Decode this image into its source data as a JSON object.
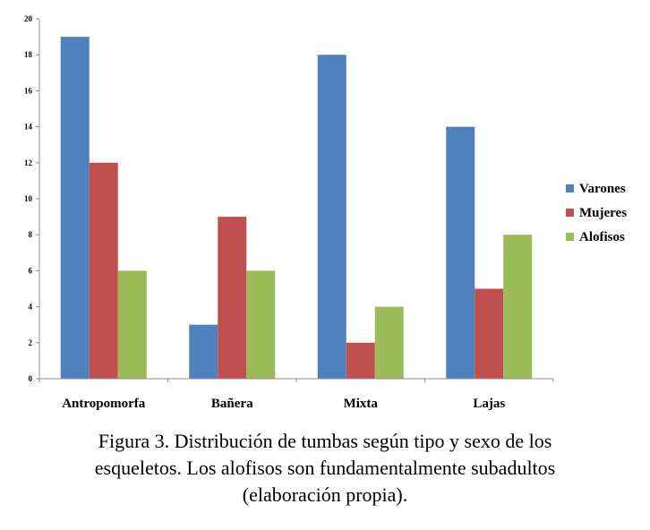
{
  "chart_data": {
    "type": "bar",
    "categories": [
      "Antropomorfa",
      "Bañera",
      "Mixta",
      "Lajas"
    ],
    "series": [
      {
        "name": "Varones",
        "color": "#4F81BD",
        "values": [
          19,
          3,
          18,
          14
        ]
      },
      {
        "name": "Mujeres",
        "color": "#C0504D",
        "values": [
          12,
          9,
          2,
          5
        ]
      },
      {
        "name": "Alofisos",
        "color": "#9BBB59",
        "values": [
          6,
          6,
          4,
          8
        ]
      }
    ],
    "y_ticks": [
      "0",
      "2",
      "4",
      "6",
      "8",
      "10",
      "12",
      "14",
      "16",
      "18",
      "20"
    ],
    "ylim": [
      0,
      20
    ],
    "grid": false,
    "legend_position": "right"
  },
  "caption": {
    "line1": "Figura 3. Distribución de tumbas según tipo y sexo de los",
    "line2": "esqueletos. Los alofisos son fundamentalmente subadultos",
    "line3": "(elaboración propia)."
  }
}
